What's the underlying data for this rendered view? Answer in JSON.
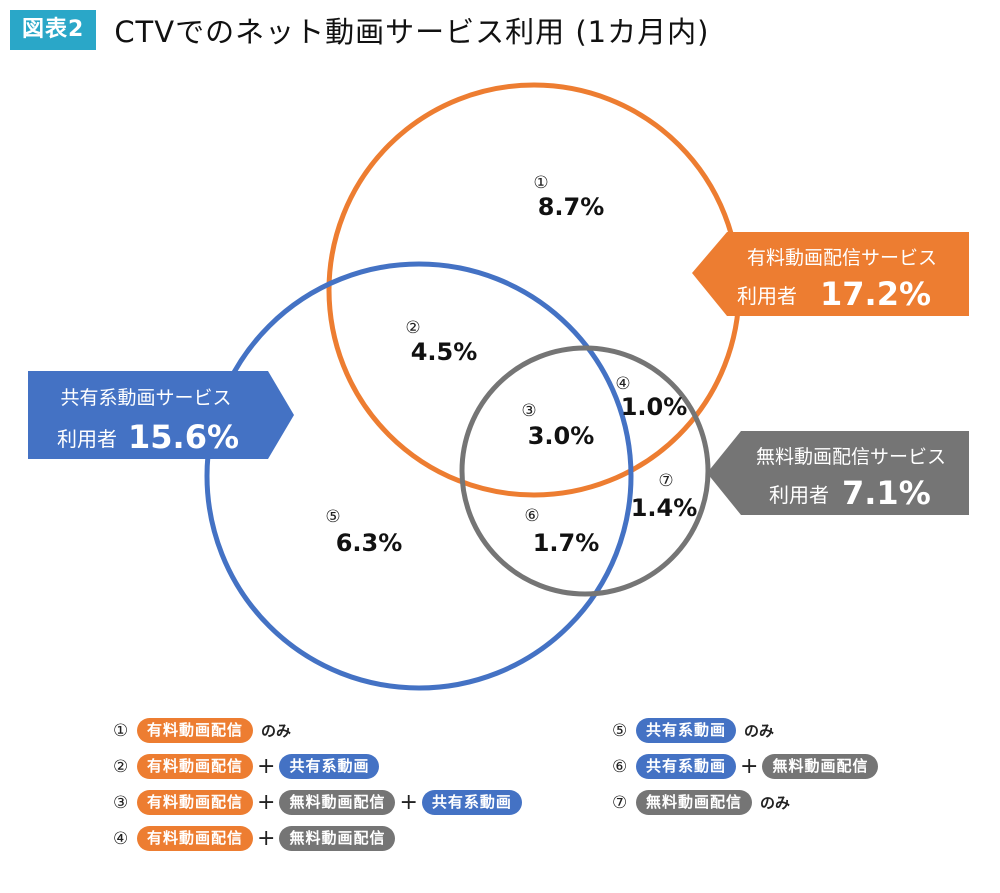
{
  "header": {
    "badge": "図表2",
    "title": "CTVでのネット動画サービス利用 (1カ月内)"
  },
  "colors": {
    "paid": "#ed7d31",
    "shared": "#4472c4",
    "free": "#757575",
    "badge": "#2aa7c8"
  },
  "sets": {
    "paid": {
      "name": "有料動画配信サービス",
      "prefix": "利用者",
      "pct": "17.2%"
    },
    "shared": {
      "name": "共有系動画サービス",
      "prefix": "利用者",
      "pct": "15.6%"
    },
    "free": {
      "name": "無料動画配信サービス",
      "prefix": "利用者",
      "pct": "7.1%"
    }
  },
  "regions": [
    {
      "num": "①",
      "pct": "8.7%"
    },
    {
      "num": "②",
      "pct": "4.5%"
    },
    {
      "num": "③",
      "pct": "3.0%"
    },
    {
      "num": "④",
      "pct": "1.0%"
    },
    {
      "num": "⑤",
      "pct": "6.3%"
    },
    {
      "num": "⑥",
      "pct": "1.7%"
    },
    {
      "num": "⑦",
      "pct": "1.4%"
    }
  ],
  "legend": {
    "only": "のみ",
    "plus": "+",
    "paid": "有料動画配信",
    "shared": "共有系動画",
    "free": "無料動画配信"
  }
}
